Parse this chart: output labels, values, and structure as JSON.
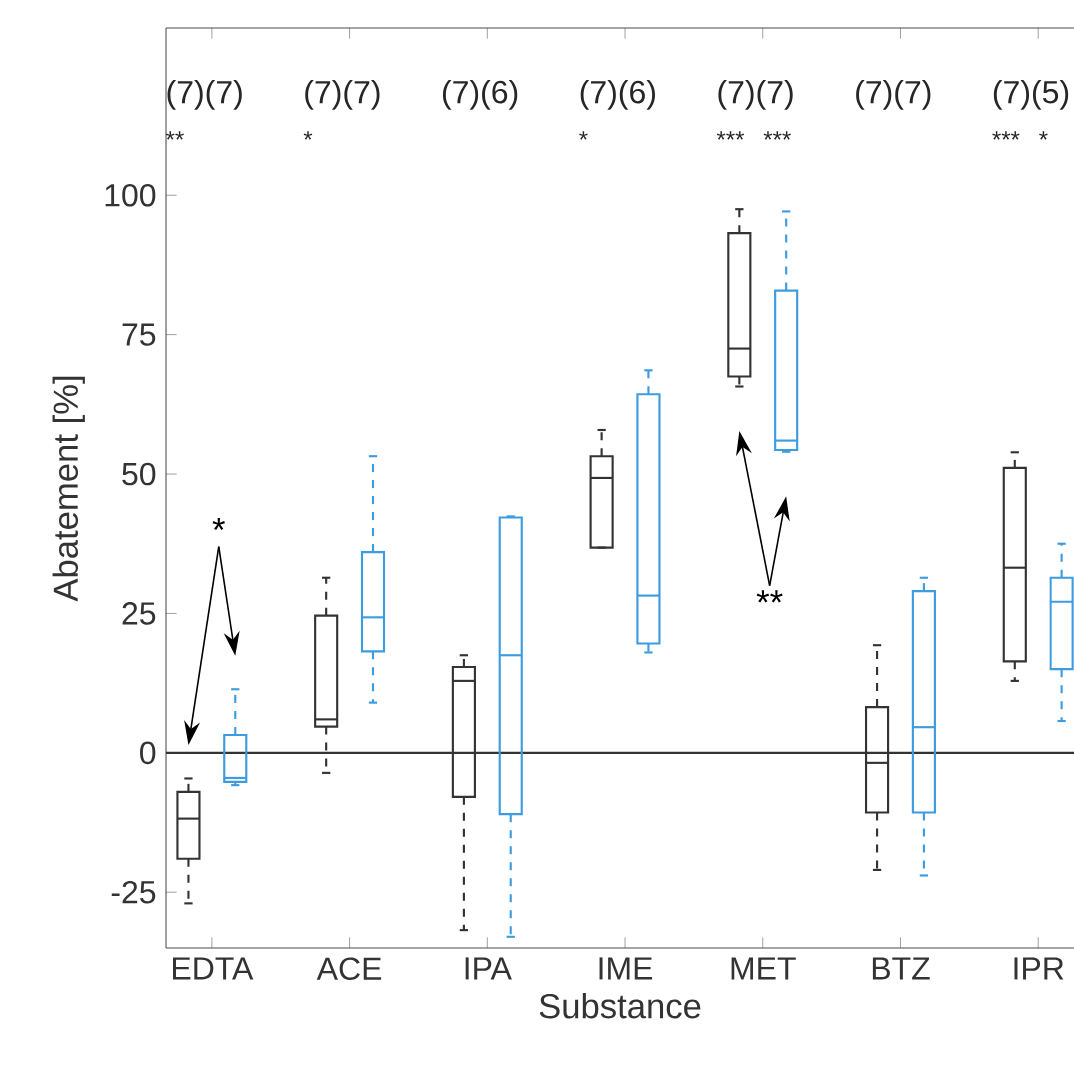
{
  "chart_data": {
    "type": "box",
    "xlabel": "Substance",
    "ylabel": "Abatement  [%]",
    "categories": [
      "EDTA",
      "ACE",
      "IPA",
      "IME",
      "MET",
      "BTZ",
      "IPR"
    ],
    "ylim": [
      -35,
      130
    ],
    "yticks": [
      -25,
      0,
      25,
      50,
      75,
      100
    ],
    "ref_lines": [
      {
        "axis": "y",
        "value": 0,
        "color": "#333333"
      }
    ],
    "series": [
      {
        "color": "#333333",
        "boxes": [
          {
            "low": -27,
            "q1": -19,
            "median": -11.8,
            "q3": -7,
            "high": -4.6
          },
          {
            "low": -3.6,
            "q1": 4.7,
            "median": 6,
            "q3": 24.6,
            "high": 31.4
          },
          {
            "low": -31.8,
            "q1": -7.9,
            "median": 12.9,
            "q3": 15.4,
            "high": 17.5
          },
          {
            "low": 36.8,
            "q1": 36.8,
            "median": 49.3,
            "q3": 53.2,
            "high": 57.9
          },
          {
            "low": 65.7,
            "q1": 67.5,
            "median": 72.5,
            "q3": 93.2,
            "high": 97.5
          },
          {
            "low": -21,
            "q1": -10.7,
            "median": -1.8,
            "q3": 8.2,
            "high": 19.3
          },
          {
            "low": 12.9,
            "q1": 16.4,
            "median": 33.2,
            "q3": 51.1,
            "high": 53.9
          }
        ]
      },
      {
        "color": "#3d9be0",
        "boxes": [
          {
            "low": -5.8,
            "q1": -5.2,
            "median": -4.5,
            "q3": 3.2,
            "high": 11.4
          },
          {
            "low": 9,
            "q1": 18.2,
            "median": 24.3,
            "q3": 36,
            "high": 53.2
          },
          {
            "low": -33,
            "q1": -11,
            "median": 17.5,
            "q3": 42.2,
            "high": 42.4
          },
          {
            "low": 18,
            "q1": 19.6,
            "median": 28.2,
            "q3": 64.3,
            "high": 68.6
          },
          {
            "low": 54,
            "q1": 54.3,
            "median": 56,
            "q3": 82.9,
            "high": 97.1
          },
          {
            "low": -22,
            "q1": -10.7,
            "median": 4.6,
            "q3": 29,
            "high": 31.4
          },
          {
            "low": 5.7,
            "q1": 15,
            "median": 27.1,
            "q3": 31.4,
            "high": 37.5
          }
        ]
      }
    ],
    "annotations": [
      "(7)(7)",
      "(7)(7)",
      "(7)(6)",
      "(7)(6)",
      "(7)(7)",
      "(7)(7)",
      "(7)(5)",
      "**",
      "*",
      "*",
      "***",
      "***",
      "***",
      "*",
      "*",
      "**"
    ]
  }
}
